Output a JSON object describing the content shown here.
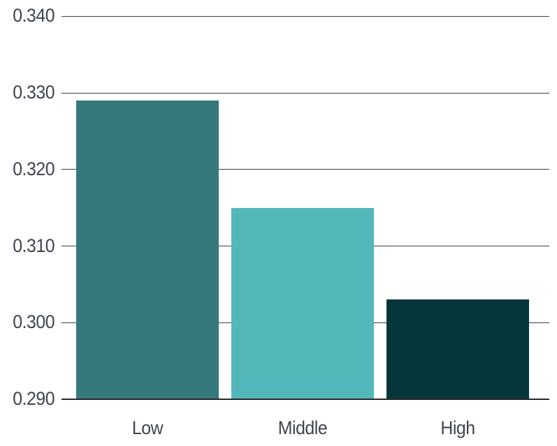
{
  "chart_data": {
    "type": "bar",
    "categories": [
      "Low",
      "Middle",
      "High"
    ],
    "values": [
      0.329,
      0.315,
      0.303
    ],
    "title": "",
    "xlabel": "",
    "ylabel": "",
    "ylim": [
      0.29,
      0.34
    ],
    "ytick_step": 0.01,
    "ytick_labels": [
      "0.290",
      "0.300",
      "0.310",
      "0.320",
      "0.330",
      "0.340"
    ],
    "grid": true,
    "legend": false,
    "bar_colors": [
      "#35797d",
      "#53b6b9",
      "#04363a"
    ],
    "axis_text_color": "#3d4450",
    "gridline_color": "#3a3e42",
    "baseline_color": "#26292c",
    "background_color": "#ffffff"
  }
}
